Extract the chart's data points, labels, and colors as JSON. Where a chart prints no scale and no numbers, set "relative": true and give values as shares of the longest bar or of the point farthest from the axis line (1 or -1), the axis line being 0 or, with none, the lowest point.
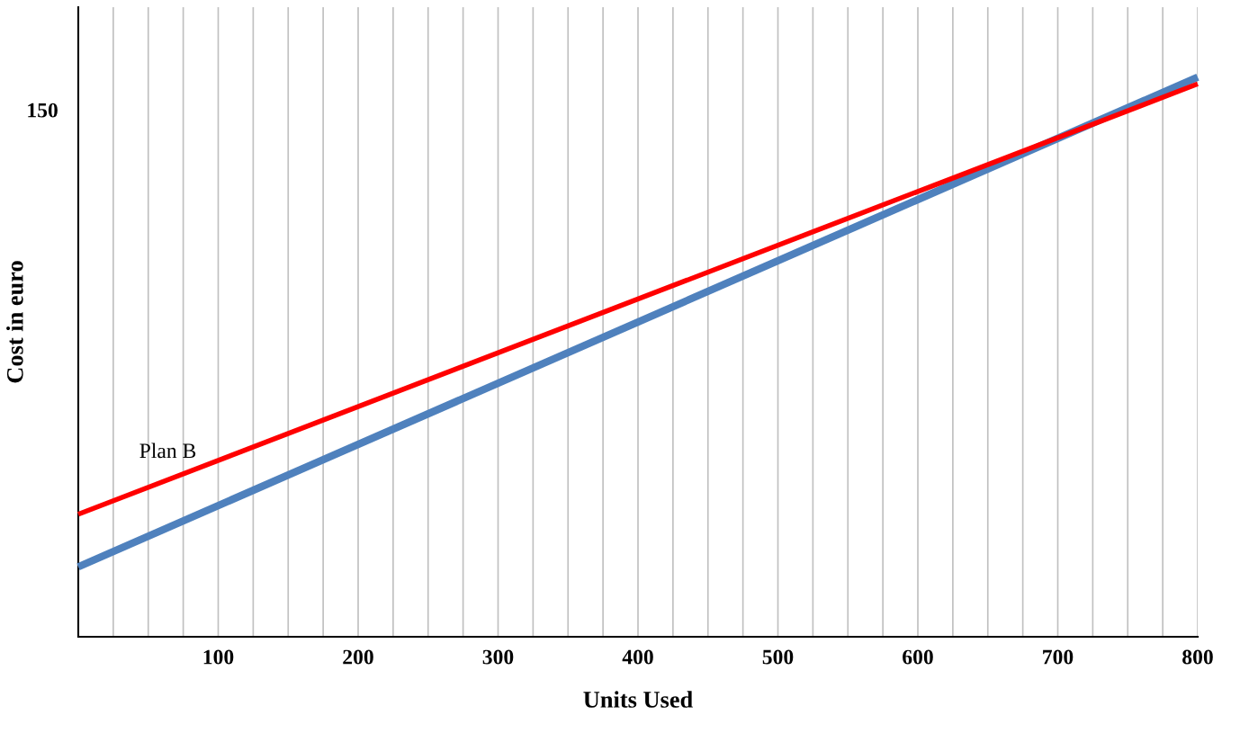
{
  "chart_data": {
    "type": "line",
    "xlabel": "Units Used",
    "ylabel": "Cost in euro",
    "x": [
      0,
      800
    ],
    "xlim": [
      0,
      800
    ],
    "relative": true,
    "annotations": [
      "150"
    ],
    "xticks": [
      {
        "value": 25,
        "label": null
      },
      {
        "value": 50,
        "label": null
      },
      {
        "value": 75,
        "label": null
      },
      100,
      {
        "value": 125,
        "label": null
      },
      {
        "value": 150,
        "label": null
      },
      {
        "value": 175,
        "label": null
      },
      200,
      {
        "value": 225,
        "label": null
      },
      {
        "value": 250,
        "label": null
      },
      {
        "value": 275,
        "label": null
      },
      300,
      {
        "value": 325,
        "label": null
      },
      {
        "value": 350,
        "label": null
      },
      {
        "value": 375,
        "label": null
      },
      400,
      {
        "value": 425,
        "label": null
      },
      {
        "value": 450,
        "label": null
      },
      {
        "value": 475,
        "label": null
      },
      500,
      {
        "value": 525,
        "label": null
      },
      {
        "value": 550,
        "label": null
      },
      {
        "value": 575,
        "label": null
      },
      600,
      {
        "value": 625,
        "label": null
      },
      {
        "value": 650,
        "label": null
      },
      {
        "value": 675,
        "label": null
      },
      700,
      {
        "value": 725,
        "label": null
      },
      {
        "value": 750,
        "label": null
      },
      {
        "value": 775,
        "label": null
      },
      800
    ],
    "grid": "x",
    "series": [
      {
        "color": "#4f81bd",
        "values": [
          0.125,
          1
        ]
      },
      {
        "name": "Plan B",
        "color": "#ff0000",
        "values": [
          0.219,
          0.988
        ]
      }
    ]
  }
}
